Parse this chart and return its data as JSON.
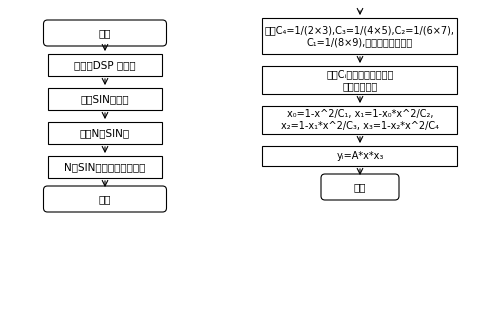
{
  "bg_color": "#ffffff",
  "line_color": "#000000",
  "text_color": "#000000",
  "font_size": 7.5,
  "left_flow": {
    "start_label": "开始",
    "boxes": [
      "初始化DSP 及外设",
      "调用SIN子程序",
      "计算N个SIN值",
      "N个SIN值保存在缓冲区中"
    ],
    "end_label": "结束"
  },
  "right_flow": {
    "top_arrow": true,
    "boxes": [
      "系数C₄=1/(2×3),C₃=1/(4×5),C₂=1/(6×7),\nC₁=1/(8×9),保存在程序存储区",
      "系数Cᵢ由程序存储区搬移\n到数据存储区",
      "x₀=1-x^2/C₁, x₁=1-x₀*x^2/C₂,\nx₂=1-x₁*x^2/C₃, x₃=1-x₂*x^2/C₄",
      "yᵢ=A*x*x₃"
    ],
    "end_label": "返回"
  }
}
